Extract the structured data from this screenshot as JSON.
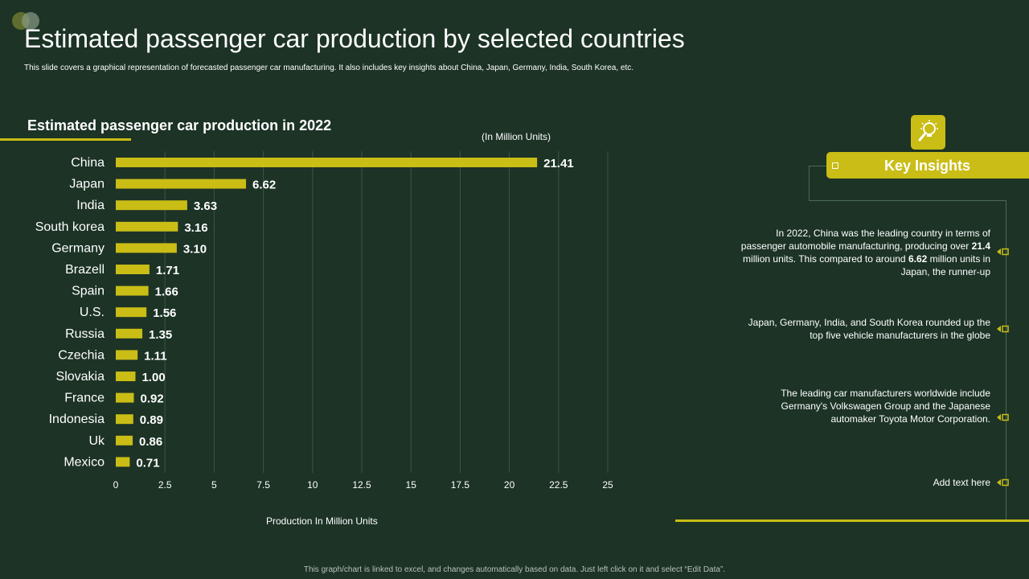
{
  "header": {
    "title": "Estimated passenger car production by selected countries",
    "subtitle": "This slide covers a graphical representation of forecasted passenger car manufacturing. It also includes key insights about China, Japan, Germany, India, South Korea, etc."
  },
  "colors": {
    "background": "#1c3326",
    "accent": "#c9bd16",
    "grid": "#3d5647"
  },
  "chart_data": {
    "type": "bar",
    "orientation": "horizontal",
    "title": "Estimated passenger car production in 2022",
    "units_note": "(In Million Units)",
    "xlabel": "Production In Million Units",
    "ylabel": "",
    "categories": [
      "China",
      "Japan",
      "India",
      "South korea",
      "Germany",
      "Brazell",
      "Spain",
      "U.S.",
      "Russia",
      "Czechia",
      "Slovakia",
      "France",
      "Indonesia",
      "Uk",
      "Mexico"
    ],
    "values": [
      21.41,
      6.62,
      3.63,
      3.16,
      3.1,
      1.71,
      1.66,
      1.56,
      1.35,
      1.11,
      1.0,
      0.92,
      0.89,
      0.86,
      0.71
    ],
    "value_labels": [
      "21.41",
      "6.62",
      "3.63",
      "3.16",
      "3.10",
      "1.71",
      "1.66",
      "1.56",
      "1.35",
      "1.11",
      "1.00",
      "0.92",
      "0.89",
      "0.86",
      "0.71"
    ],
    "xlim": [
      0,
      25
    ],
    "xticks": [
      "0",
      "2.5",
      "5",
      "7.5",
      "10",
      "12.5",
      "15",
      "17.5",
      "20",
      "22.5",
      "25"
    ],
    "grid": true,
    "legend": "none"
  },
  "insights": {
    "heading": "Key Insights",
    "items": [
      {
        "line1": "In 2022, China was the leading country in terms of",
        "line2a": "passenger automobile manufacturing, producing over ",
        "line2b": "21.4",
        "line3a": "million units. This compared to around ",
        "line3b": "6.62",
        "line3c": " million units in",
        "line4": "Japan, the runner-up"
      },
      {
        "line1": "Japan, Germany, India, and South Korea rounded up the",
        "line2": "top five vehicle manufacturers in the globe"
      },
      {
        "line1": "The leading car manufacturers worldwide include",
        "line2": "Germany's Volkswagen Group and the Japanese",
        "line3": "automaker Toyota Motor Corporation."
      },
      {
        "line1": "Add text here"
      }
    ]
  },
  "footer": "This graph/chart is linked to excel, and changes automatically based on data. Just left click on it and select “Edit Data”."
}
